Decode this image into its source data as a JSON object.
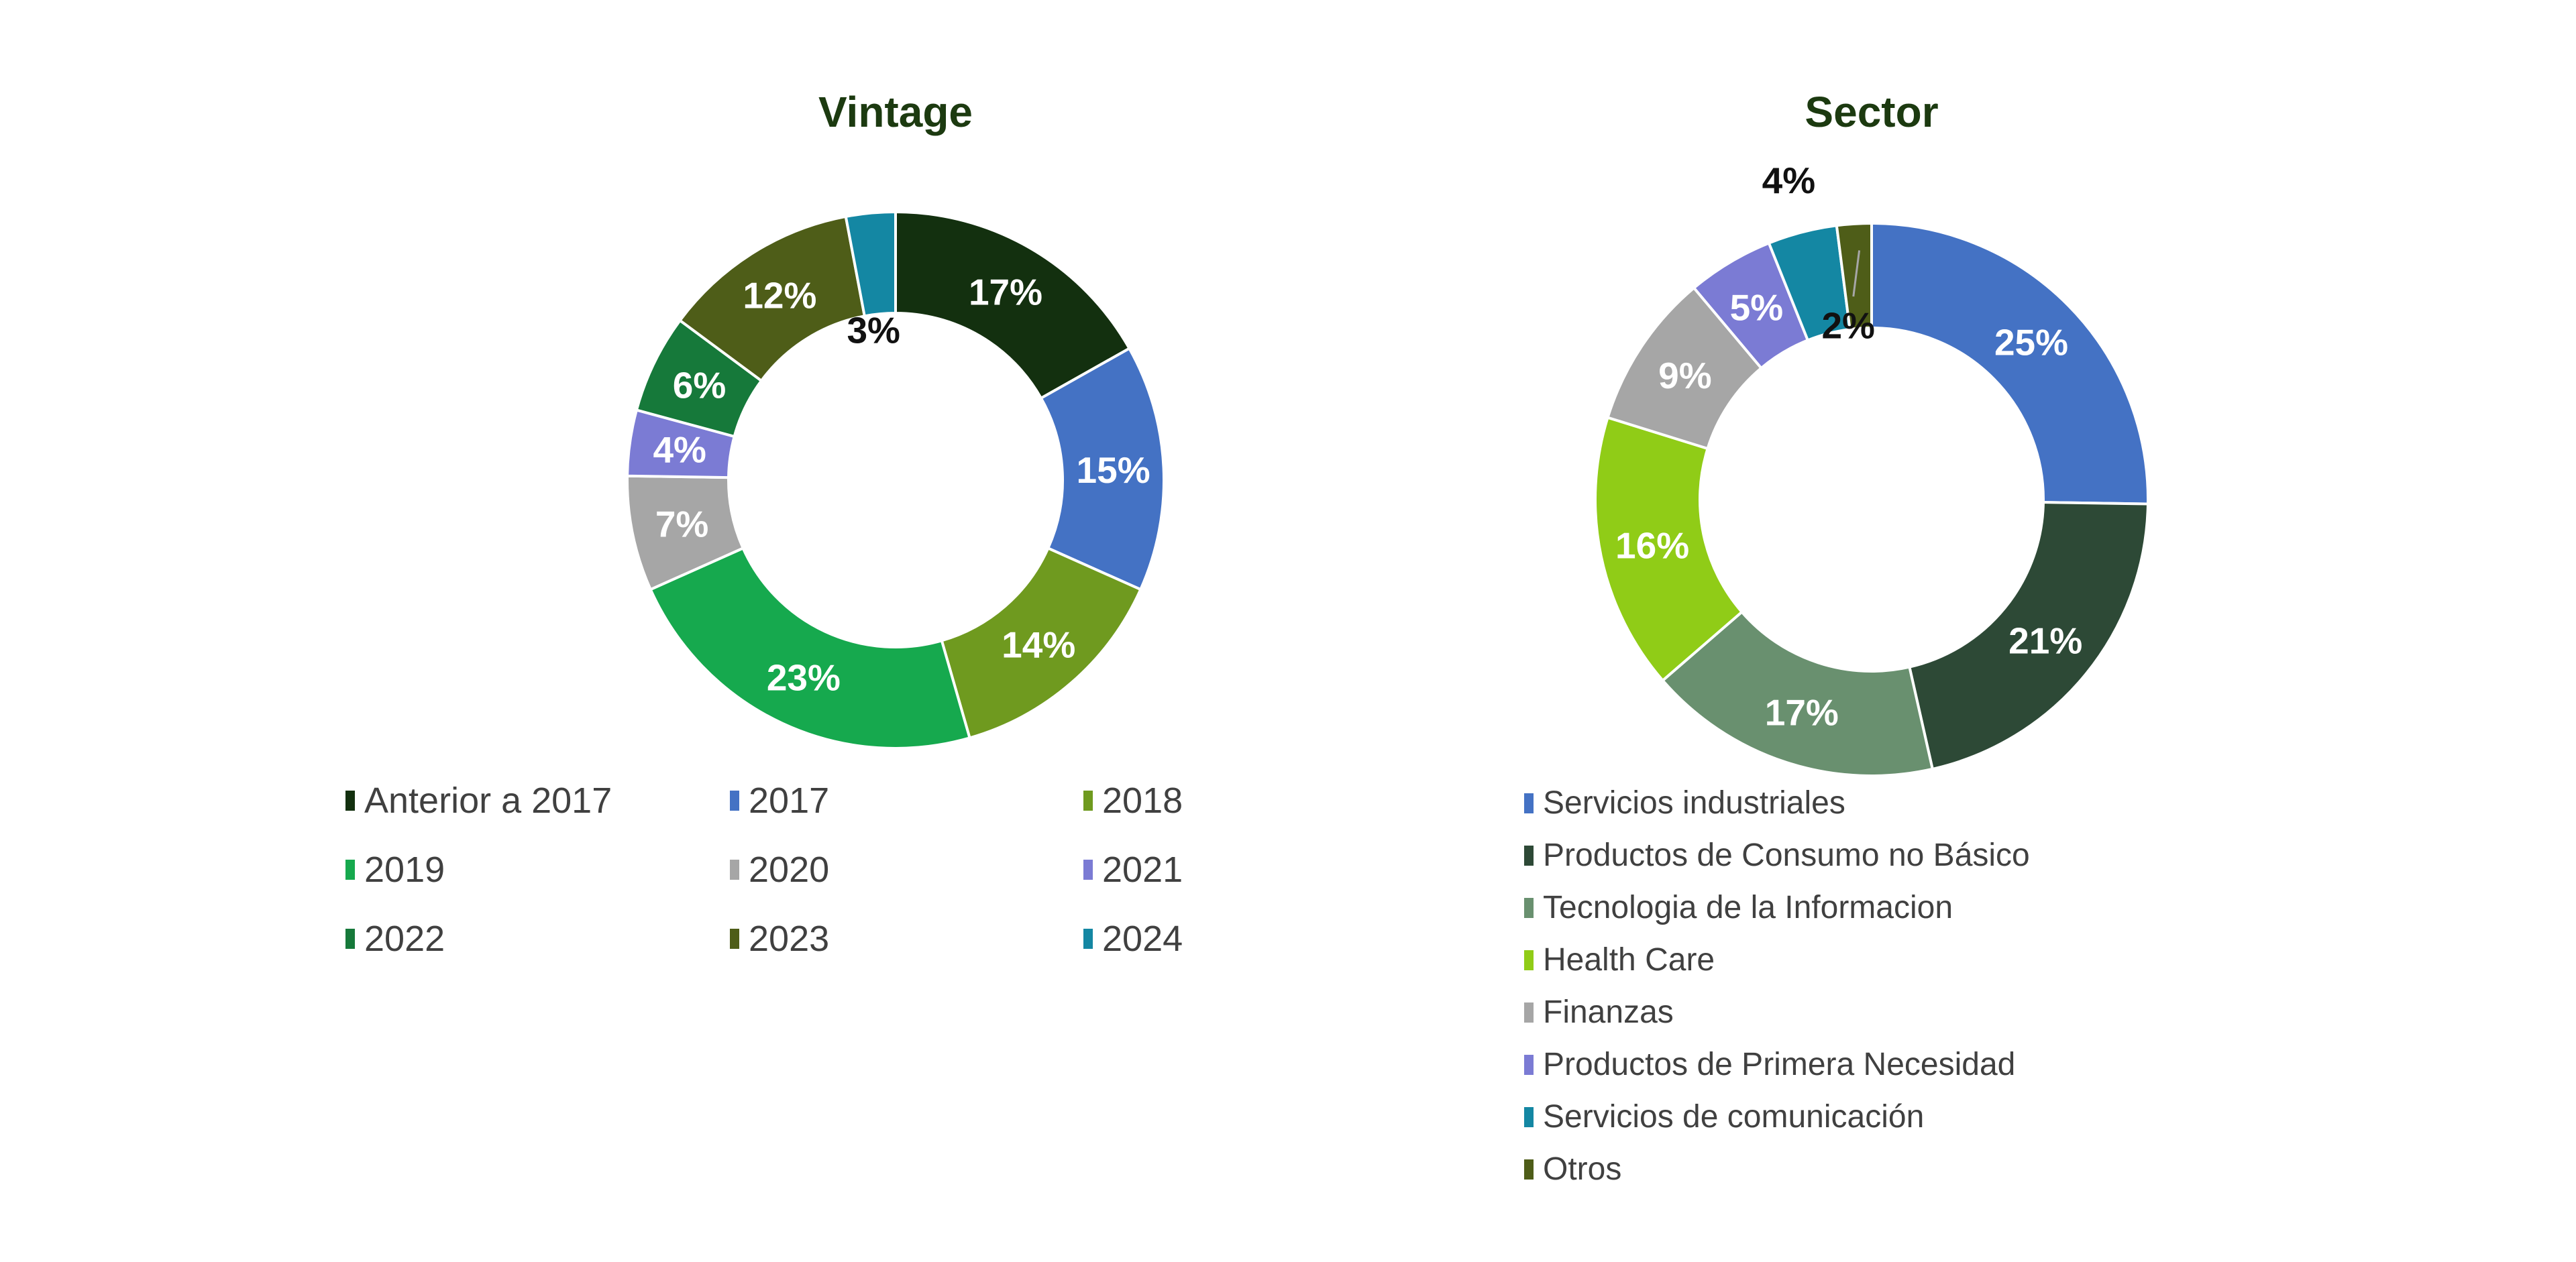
{
  "title_color": "#1C3A10",
  "label_dark_color": "#111111",
  "legend_text_color": "#404040",
  "callout_line_color": "#A6A6A6",
  "chart_data": [
    {
      "type": "donut",
      "title": "Vintage",
      "legend_position": "bottom-grid-3col",
      "slices": [
        {
          "label": "Anterior a 2017",
          "value": 17,
          "pct": "17%",
          "color": "#13300F",
          "label_placement": "mid"
        },
        {
          "label": "2017",
          "value": 15,
          "pct": "15%",
          "color": "#4472C4",
          "label_placement": "mid"
        },
        {
          "label": "2018",
          "value": 14,
          "pct": "14%",
          "color": "#6F9A1F",
          "label_placement": "mid"
        },
        {
          "label": "2019",
          "value": 23,
          "pct": "23%",
          "color": "#16A94E",
          "label_placement": "mid"
        },
        {
          "label": "2020",
          "value": 7,
          "pct": "7%",
          "color": "#A6A6A6",
          "label_placement": "mid"
        },
        {
          "label": "2021",
          "value": 4,
          "pct": "4%",
          "color": "#7B7BD4",
          "label_placement": "mid"
        },
        {
          "label": "2022",
          "value": 6,
          "pct": "6%",
          "color": "#16793A",
          "label_placement": "mid"
        },
        {
          "label": "2023",
          "value": 12,
          "pct": "12%",
          "color": "#4E5D18",
          "label_placement": "mid"
        },
        {
          "label": "2024",
          "value": 3,
          "pct": "3%",
          "color": "#1487A3",
          "label_placement": "hole"
        }
      ]
    },
    {
      "type": "donut",
      "title": "Sector",
      "legend_position": "bottom-list",
      "slices": [
        {
          "label": "Servicios industriales",
          "value": 25,
          "pct": "25%",
          "color": "#4472C4",
          "label_placement": "mid"
        },
        {
          "label": "Productos de Consumo no Básico",
          "value": 21,
          "pct": "21%",
          "color": "#2D4936",
          "label_placement": "mid"
        },
        {
          "label": "Tecnologia de la Informacion",
          "value": 17,
          "pct": "17%",
          "color": "#69906F",
          "label_placement": "mid"
        },
        {
          "label": "Health Care",
          "value": 16,
          "pct": "16%",
          "color": "#90CC17",
          "label_placement": "mid"
        },
        {
          "label": "Finanzas",
          "value": 9,
          "pct": "9%",
          "color": "#A6A6A6",
          "label_placement": "mid"
        },
        {
          "label": "Productos de Primera Necesidad",
          "value": 5,
          "pct": "5%",
          "color": "#7B7BD4",
          "label_placement": "mid"
        },
        {
          "label": "Servicios de comunicación",
          "value": 4,
          "pct": "4%",
          "color": "#1487A3",
          "label_placement": "outside"
        },
        {
          "label": "Otros",
          "value": 2,
          "pct": "2%",
          "color": "#4E5D18",
          "label_placement": "hole-callout"
        }
      ]
    }
  ]
}
